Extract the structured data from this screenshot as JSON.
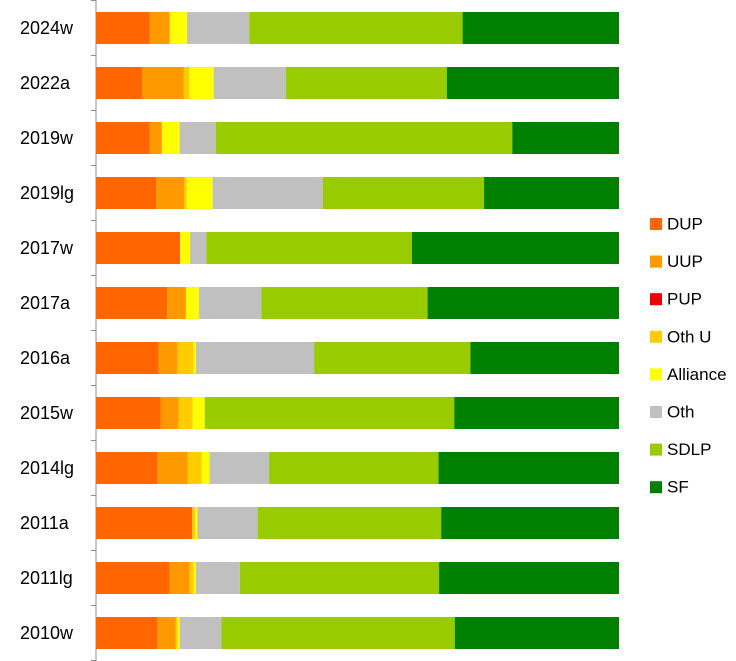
{
  "chart_data": {
    "type": "bar",
    "orientation": "horizontal",
    "stacked": true,
    "normalized": true,
    "title": "",
    "xlabel": "",
    "ylabel": "",
    "xlim": [
      0,
      100
    ],
    "grid": false,
    "legend_position": "right",
    "categories": [
      "2024w",
      "2022a",
      "2019w",
      "2019lg",
      "2017w",
      "2017a",
      "2016a",
      "2015w",
      "2014lg",
      "2011a",
      "2011lg",
      "2010w"
    ],
    "series": [
      {
        "name": "DUP",
        "color": "#ff6600",
        "values": [
          10.3,
          8.8,
          10.3,
          11.5,
          16.1,
          13.6,
          12.0,
          12.4,
          11.8,
          18.4,
          14.1,
          11.8
        ]
      },
      {
        "name": "UUP",
        "color": "#ff9900",
        "values": [
          3.8,
          8.0,
          2.3,
          5.4,
          0.0,
          3.6,
          3.6,
          3.4,
          5.7,
          0.0,
          3.8,
          3.4
        ]
      },
      {
        "name": "PUP",
        "color": "#ee0000",
        "values": [
          0,
          0,
          0,
          0,
          0,
          0,
          0,
          0,
          0,
          0,
          0,
          0
        ]
      },
      {
        "name": "Oth U",
        "color": "#ffcc00",
        "values": [
          0.0,
          1.1,
          0.0,
          0.4,
          0.0,
          0.0,
          3.1,
          2.7,
          2.7,
          0.6,
          0.8,
          0.4
        ]
      },
      {
        "name": "Alliance",
        "color": "#ffff00",
        "values": [
          3.3,
          4.6,
          3.4,
          5.0,
          1.9,
          2.5,
          0.4,
          2.3,
          1.5,
          0.4,
          0.4,
          0.4
        ]
      },
      {
        "name": "Oth",
        "color": "#c0c0c0",
        "values": [
          11.9,
          13.8,
          6.9,
          21.1,
          3.1,
          11.9,
          22.6,
          0.0,
          11.4,
          11.5,
          8.4,
          8.0
        ]
      },
      {
        "name": "SDLP",
        "color": "#99cc00",
        "values": [
          40.8,
          30.8,
          56.7,
          30.8,
          39.3,
          31.8,
          29.9,
          47.7,
          32.4,
          35.1,
          38.1,
          44.6
        ]
      },
      {
        "name": "SF",
        "color": "#008000",
        "values": [
          29.9,
          32.9,
          20.4,
          25.8,
          39.6,
          36.6,
          28.4,
          31.5,
          34.5,
          34.0,
          34.4,
          31.4
        ]
      }
    ]
  }
}
